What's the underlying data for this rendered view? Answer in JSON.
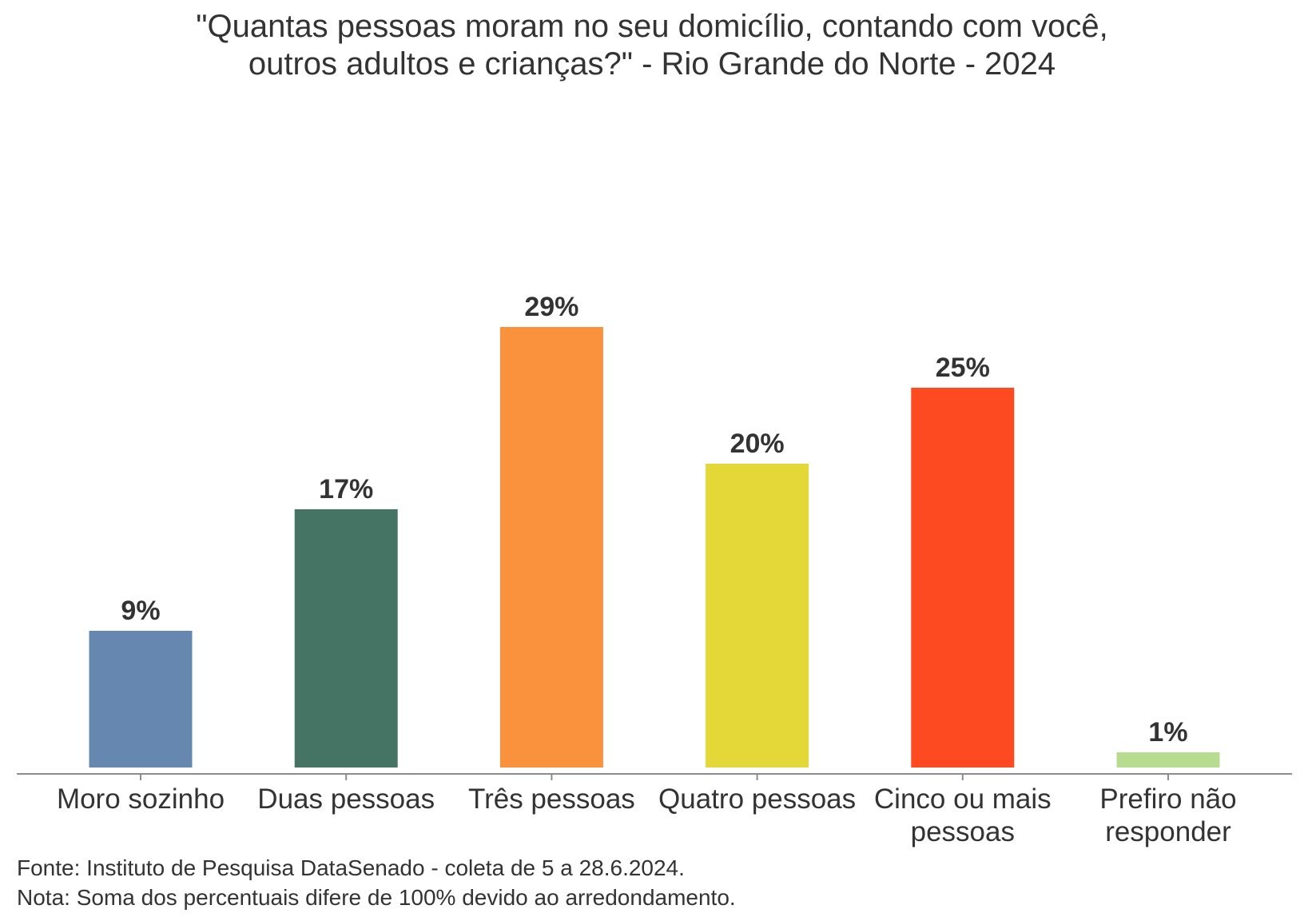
{
  "chart_data": {
    "type": "bar",
    "title_lines": [
      "\"Quantas pessoas moram no seu domicílio, contando com você,",
      "outros adultos e crianças?\" - Rio Grande do Norte - 2024"
    ],
    "categories": [
      [
        "Moro sozinho"
      ],
      [
        "Duas pessoas"
      ],
      [
        "Três pessoas"
      ],
      [
        "Quatro pessoas"
      ],
      [
        "Cinco ou mais",
        "pessoas"
      ],
      [
        "Prefiro não",
        "responder"
      ]
    ],
    "values": [
      9,
      17,
      29,
      20,
      25,
      1
    ],
    "value_labels": [
      "9%",
      "17%",
      "29%",
      "20%",
      "25%",
      "1%"
    ],
    "colors": [
      "#6688b0",
      "#467464",
      "#f9913d",
      "#e3d838",
      "#fd4a20",
      "#b8dc8f"
    ],
    "xlabel": "",
    "ylabel": "",
    "ylim": [
      0,
      30
    ],
    "grid": false,
    "legend": "none",
    "axis_color": "#8c8c8c"
  },
  "notes": {
    "source": "Fonte: Instituto de Pesquisa DataSenado - coleta de 5 a 28.6.2024.",
    "note": "Nota: Soma dos percentuais difere de 100% devido ao arredondamento."
  }
}
